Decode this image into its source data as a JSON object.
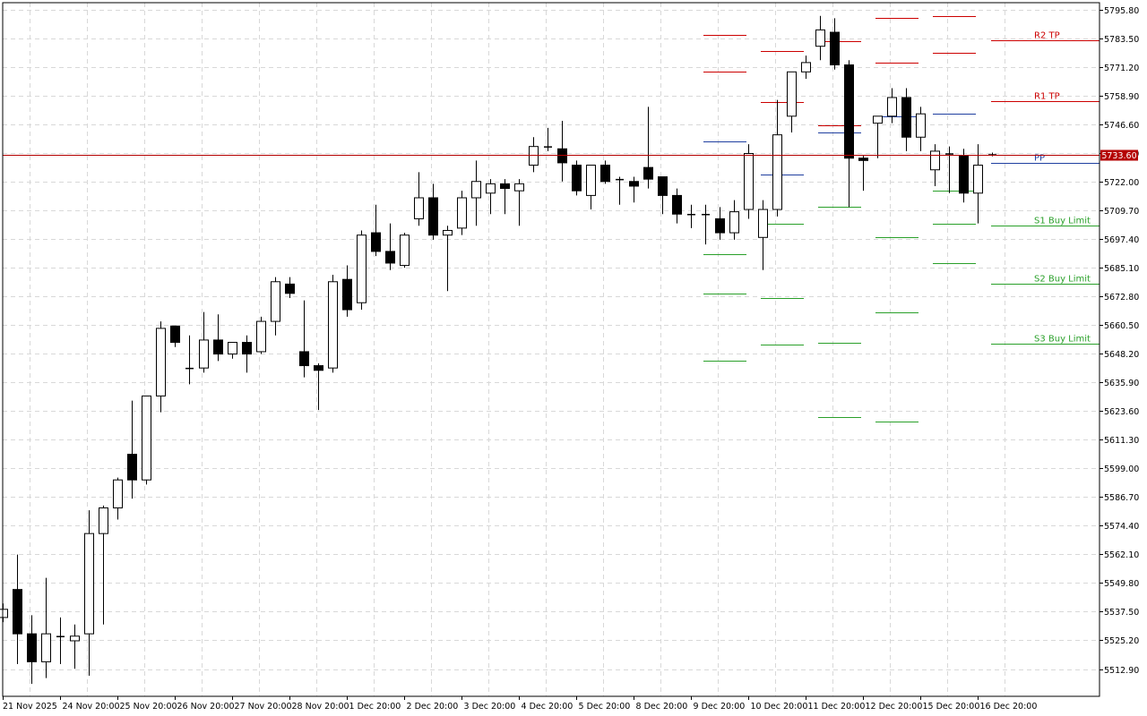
{
  "chart_data": {
    "type": "candlestick",
    "ylim": [
      5506.5,
      5798.0
    ],
    "y_ticks": [
      "5795.80",
      "5783.50",
      "5771.20",
      "5758.90",
      "5746.60",
      "5734.30",
      "5722.00",
      "5709.70",
      "5697.40",
      "5685.10",
      "5672.80",
      "5660.50",
      "5648.20",
      "5635.90",
      "5623.60",
      "5611.30",
      "5599.00",
      "5586.70",
      "5574.40",
      "5562.10",
      "5549.80",
      "5537.50",
      "5525.20",
      "5512.90"
    ],
    "x_labels": [
      "21 Nov 2025",
      "24 Nov 20:00",
      "25 Nov 20:00",
      "26 Nov 20:00",
      "27 Nov 20:00",
      "28 Nov 20:00",
      "1 Dec 20:00",
      "2 Dec 20:00",
      "3 Dec 20:00",
      "4 Dec 20:00",
      "5 Dec 20:00",
      "8 Dec 20:00",
      "9 Dec 20:00",
      "10 Dec 20:00",
      "11 Dec 20:00",
      "12 Dec 20:00",
      "15 Dec 20:00",
      "16 Dec 20:00"
    ],
    "current_price": "5733.60",
    "current_price_value": 5733.6,
    "grid": true,
    "colors": {
      "bull_fill": "#ffffff",
      "bear_fill": "#000000",
      "wick": "#000000",
      "resistance": "#cc0000",
      "pivot": "#1f3fa0",
      "support": "#2aa02a",
      "price_line": "#b40000",
      "grid": "#d8d8d8"
    },
    "candles": [
      {
        "o": 5535.0,
        "h": 5541.0,
        "l": 5533.0,
        "c": 5538.5
      },
      {
        "o": 5547.0,
        "h": 5562.0,
        "l": 5515.0,
        "c": 5528.0
      },
      {
        "o": 5528.0,
        "h": 5536.0,
        "l": 5506.5,
        "c": 5516.0
      },
      {
        "o": 5516.0,
        "h": 5552.0,
        "l": 5509.0,
        "c": 5528.0
      },
      {
        "o": 5527.0,
        "h": 5535.0,
        "l": 5515.0,
        "c": 5527.0
      },
      {
        "o": 5525.0,
        "h": 5532.0,
        "l": 5513.0,
        "c": 5527.0
      },
      {
        "o": 5528.0,
        "h": 5581.0,
        "l": 5510.0,
        "c": 5571.0
      },
      {
        "o": 5571.0,
        "h": 5583.0,
        "l": 5532.0,
        "c": 5582.0
      },
      {
        "o": 5582.0,
        "h": 5595.0,
        "l": 5577.0,
        "c": 5594.0
      },
      {
        "o": 5605.0,
        "h": 5628.0,
        "l": 5586.0,
        "c": 5594.0
      },
      {
        "o": 5594.0,
        "h": 5630.0,
        "l": 5592.0,
        "c": 5630.0
      },
      {
        "o": 5630.0,
        "h": 5662.0,
        "l": 5623.0,
        "c": 5659.0
      },
      {
        "o": 5660.0,
        "h": 5660.0,
        "l": 5651.0,
        "c": 5653.0
      },
      {
        "o": 5642.0,
        "h": 5656.0,
        "l": 5635.0,
        "c": 5642.0
      },
      {
        "o": 5642.0,
        "h": 5666.0,
        "l": 5640.0,
        "c": 5654.0
      },
      {
        "o": 5654.0,
        "h": 5665.0,
        "l": 5645.0,
        "c": 5648.0
      },
      {
        "o": 5648.0,
        "h": 5653.0,
        "l": 5646.0,
        "c": 5653.0
      },
      {
        "o": 5653.0,
        "h": 5656.0,
        "l": 5640.0,
        "c": 5648.0
      },
      {
        "o": 5649.0,
        "h": 5664.0,
        "l": 5648.0,
        "c": 5662.0
      },
      {
        "o": 5662.0,
        "h": 5681.0,
        "l": 5656.0,
        "c": 5679.0
      },
      {
        "o": 5678.0,
        "h": 5681.0,
        "l": 5672.0,
        "c": 5674.0
      },
      {
        "o": 5649.0,
        "h": 5671.0,
        "l": 5638.0,
        "c": 5643.0
      },
      {
        "o": 5643.0,
        "h": 5644.0,
        "l": 5624.0,
        "c": 5641.0
      },
      {
        "o": 5642.0,
        "h": 5682.0,
        "l": 5640.0,
        "c": 5679.0
      },
      {
        "o": 5680.0,
        "h": 5686.0,
        "l": 5664.0,
        "c": 5667.0
      },
      {
        "o": 5670.0,
        "h": 5701.0,
        "l": 5667.0,
        "c": 5699.0
      },
      {
        "o": 5700.0,
        "h": 5712.0,
        "l": 5690.0,
        "c": 5692.0
      },
      {
        "o": 5692.0,
        "h": 5704.0,
        "l": 5684.0,
        "c": 5687.0
      },
      {
        "o": 5686.0,
        "h": 5700.0,
        "l": 5685.0,
        "c": 5699.0
      },
      {
        "o": 5706.0,
        "h": 5726.0,
        "l": 5703.0,
        "c": 5715.0
      },
      {
        "o": 5715.0,
        "h": 5721.0,
        "l": 5697.0,
        "c": 5699.0
      },
      {
        "o": 5699.0,
        "h": 5703.0,
        "l": 5675.0,
        "c": 5701.0
      },
      {
        "o": 5702.0,
        "h": 5718.0,
        "l": 5699.0,
        "c": 5715.0
      },
      {
        "o": 5715.0,
        "h": 5731.0,
        "l": 5703.0,
        "c": 5722.0
      },
      {
        "o": 5717.0,
        "h": 5723.0,
        "l": 5708.0,
        "c": 5721.0
      },
      {
        "o": 5721.0,
        "h": 5723.0,
        "l": 5708.0,
        "c": 5719.0
      },
      {
        "o": 5718.0,
        "h": 5723.0,
        "l": 5703.0,
        "c": 5721.0
      },
      {
        "o": 5729.0,
        "h": 5741.0,
        "l": 5726.0,
        "c": 5737.0
      },
      {
        "o": 5737.0,
        "h": 5745.0,
        "l": 5735.0,
        "c": 5737.0
      },
      {
        "o": 5736.0,
        "h": 5748.0,
        "l": 5722.0,
        "c": 5730.0
      },
      {
        "o": 5729.0,
        "h": 5731.0,
        "l": 5716.0,
        "c": 5718.0
      },
      {
        "o": 5716.0,
        "h": 5729.0,
        "l": 5710.0,
        "c": 5729.0
      },
      {
        "o": 5729.0,
        "h": 5731.0,
        "l": 5721.0,
        "c": 5722.0
      },
      {
        "o": 5723.0,
        "h": 5724.0,
        "l": 5712.0,
        "c": 5723.0
      },
      {
        "o": 5722.0,
        "h": 5724.0,
        "l": 5713.0,
        "c": 5720.0
      },
      {
        "o": 5728.0,
        "h": 5754.0,
        "l": 5719.0,
        "c": 5723.0
      },
      {
        "o": 5724.0,
        "h": 5724.0,
        "l": 5708.0,
        "c": 5716.0
      },
      {
        "o": 5716.0,
        "h": 5719.0,
        "l": 5704.0,
        "c": 5708.0
      },
      {
        "o": 5708.0,
        "h": 5712.0,
        "l": 5702.0,
        "c": 5708.0
      },
      {
        "o": 5708.0,
        "h": 5712.0,
        "l": 5695.0,
        "c": 5708.0
      },
      {
        "o": 5706.0,
        "h": 5711.0,
        "l": 5697.0,
        "c": 5700.0
      },
      {
        "o": 5700.0,
        "h": 5714.0,
        "l": 5697.0,
        "c": 5709.0
      },
      {
        "o": 5710.0,
        "h": 5738.0,
        "l": 5706.0,
        "c": 5734.0
      },
      {
        "o": 5698.0,
        "h": 5714.0,
        "l": 5684.0,
        "c": 5710.0
      },
      {
        "o": 5710.0,
        "h": 5757.0,
        "l": 5707.0,
        "c": 5742.0
      },
      {
        "o": 5750.0,
        "h": 5769.0,
        "l": 5743.0,
        "c": 5769.0
      },
      {
        "o": 5769.0,
        "h": 5776.0,
        "l": 5766.0,
        "c": 5773.0
      },
      {
        "o": 5780.0,
        "h": 5793.0,
        "l": 5774.0,
        "c": 5787.0
      },
      {
        "o": 5786.0,
        "h": 5792.0,
        "l": 5770.0,
        "c": 5772.0
      },
      {
        "o": 5772.0,
        "h": 5774.0,
        "l": 5711.0,
        "c": 5732.0
      },
      {
        "o": 5732.0,
        "h": 5733.0,
        "l": 5718.0,
        "c": 5731.0
      },
      {
        "o": 5747.0,
        "h": 5750.0,
        "l": 5732.0,
        "c": 5750.0
      },
      {
        "o": 5750.0,
        "h": 5762.0,
        "l": 5747.0,
        "c": 5758.0
      },
      {
        "o": 5758.0,
        "h": 5762.0,
        "l": 5735.0,
        "c": 5741.0
      },
      {
        "o": 5741.0,
        "h": 5754.0,
        "l": 5735.0,
        "c": 5751.0
      },
      {
        "o": 5727.0,
        "h": 5738.0,
        "l": 5720.0,
        "c": 5735.0
      },
      {
        "o": 5734.0,
        "h": 5737.0,
        "l": 5717.0,
        "c": 5733.5
      },
      {
        "o": 5733.0,
        "h": 5736.0,
        "l": 5713.0,
        "c": 5717.0
      },
      {
        "o": 5717.0,
        "h": 5738.0,
        "l": 5704.0,
        "c": 5729.0
      },
      {
        "o": 5733.6,
        "h": 5734.4,
        "l": 5732.8,
        "c": 5733.6
      }
    ],
    "pivot_days": [
      {
        "R2": 5785.0,
        "R1": 5769.0,
        "PP": 5739.0,
        "S1": 5691.0,
        "S2": 5674.0,
        "S3": 5645.0
      },
      {
        "R2": 5778.0,
        "R1": 5756.0,
        "PP": 5725.0,
        "S1": 5704.0,
        "S2": 5672.0,
        "S3": 5652.0
      },
      {
        "R2": 5782.0,
        "R1": 5746.0,
        "PP": 5743.0,
        "S1": 5711.0,
        "S2": 5653.0,
        "S3": 5621.0
      },
      {
        "R2": 5792.0,
        "R1": 5773.0,
        "PP": 5750.0,
        "S1": 5698.0,
        "S2": 5666.0,
        "S3": 5619.0
      },
      {
        "R2": 5793.0,
        "R1": 5777.0,
        "PP": 5751.0,
        "S1": 5718.0,
        "S2": 5704.0,
        "S3": 5687.0
      }
    ],
    "level_labels": {
      "R2": "R2 TP",
      "R1": "R1 TP",
      "PP": "PP",
      "S1": "S1 Buy Limit",
      "S2": "S2 Buy Limit",
      "S3": "S3 Buy Limit"
    },
    "current_levels": {
      "R2": 5782.5,
      "R1": 5756.5,
      "PP": 5730.0,
      "S1": 5703.0,
      "S2": 5678.0,
      "S3": 5652.5
    }
  }
}
